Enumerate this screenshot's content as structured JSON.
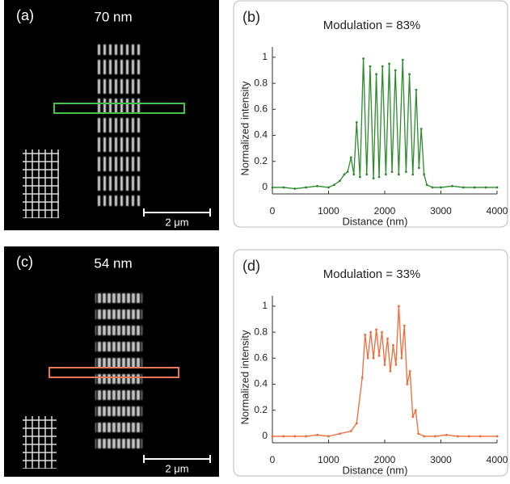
{
  "images": [
    {
      "label": "(a)",
      "title": "70 nm",
      "scale_bar": "2 μm",
      "box_color": "#46c046"
    },
    {
      "label": "(c)",
      "title": "54 nm",
      "scale_bar": "2 μm",
      "box_color": "#e8785a"
    }
  ],
  "chart_data": [
    {
      "type": "line",
      "label": "(b)",
      "title": "Modulation = 83%",
      "xlabel": "Distance (nm)",
      "ylabel": "Normalized intensity",
      "color": "#2e8b2e",
      "x": [
        0,
        200,
        400,
        600,
        800,
        1000,
        1100,
        1200,
        1280,
        1340,
        1400,
        1450,
        1500,
        1560,
        1620,
        1680,
        1740,
        1800,
        1850,
        1900,
        1960,
        2020,
        2080,
        2130,
        2190,
        2250,
        2320,
        2380,
        2440,
        2500,
        2560,
        2610,
        2650,
        2700,
        2750,
        2850,
        3000,
        3200,
        3400,
        3600,
        3800,
        4000
      ],
      "values": [
        0,
        0,
        -0.01,
        0,
        0.01,
        0,
        0.02,
        0.05,
        0.1,
        0.12,
        0.23,
        0.1,
        0.5,
        0.08,
        0.99,
        0.1,
        0.93,
        0.07,
        0.87,
        0.08,
        0.93,
        0.1,
        0.95,
        0.12,
        0.9,
        0.1,
        0.98,
        0.12,
        0.87,
        0.1,
        0.75,
        0.15,
        0.45,
        0.1,
        0.02,
        0,
        0,
        0.01,
        0,
        0,
        0,
        0
      ],
      "xlim": [
        0,
        4000
      ],
      "xticks": [
        0,
        1000,
        2000,
        3000,
        4000
      ],
      "ylim": [
        -0.05,
        1.08
      ],
      "yticks": [
        0,
        0.2,
        0.4,
        0.6,
        0.8,
        1
      ]
    },
    {
      "type": "line",
      "label": "(d)",
      "title": "Modulation = 33%",
      "xlabel": "Distance (nm)",
      "ylabel": "Normalized intensity",
      "color": "#f06a3a",
      "x": [
        0,
        200,
        400,
        600,
        800,
        1000,
        1200,
        1400,
        1500,
        1600,
        1650,
        1700,
        1750,
        1800,
        1850,
        1900,
        1950,
        2000,
        2050,
        2100,
        2150,
        2200,
        2250,
        2300,
        2350,
        2400,
        2450,
        2500,
        2550,
        2600,
        2700,
        2900,
        3100,
        3300,
        3500,
        3700,
        4000
      ],
      "values": [
        0,
        0,
        0,
        0,
        0.01,
        0,
        0.02,
        0.04,
        0.1,
        0.45,
        0.78,
        0.6,
        0.8,
        0.6,
        0.82,
        0.62,
        0.8,
        0.55,
        0.75,
        0.5,
        0.7,
        0.55,
        1.0,
        0.6,
        0.85,
        0.4,
        0.5,
        0.15,
        0.2,
        0.02,
        0,
        0,
        0.01,
        0,
        0,
        0,
        0
      ],
      "xlim": [
        0,
        4000
      ],
      "xticks": [
        0,
        1000,
        2000,
        3000,
        4000
      ],
      "ylim": [
        -0.05,
        1.08
      ],
      "yticks": [
        0,
        0.2,
        0.4,
        0.6,
        0.8,
        1
      ]
    }
  ]
}
